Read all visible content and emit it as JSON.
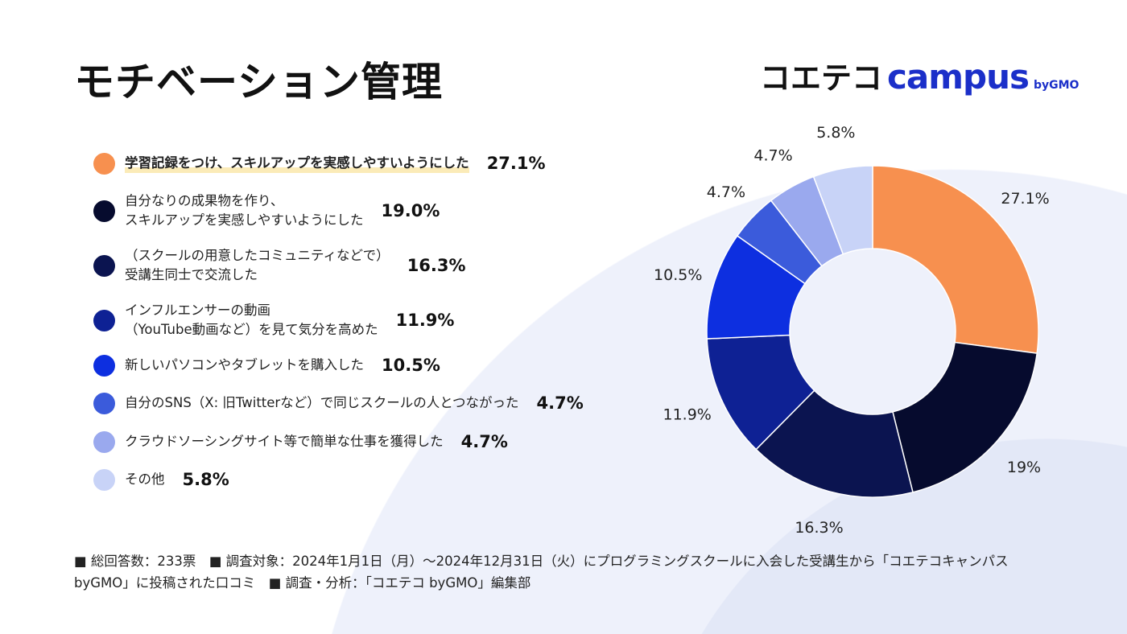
{
  "title": "モチベーション管理",
  "logo": {
    "jp": "コエテコ",
    "en": "campus",
    "by": "byGMO"
  },
  "chart_data": {
    "type": "pie",
    "donut": true,
    "title": "モチベーション管理",
    "categories": [
      "学習記録をつけ、スキルアップを実感しやすいようにした",
      "自分なりの成果物を作り、\nスキルアップを実感しやすいようにした",
      "（スクールの用意したコミュニティなどで）\n受講生同士で交流した",
      "インフルエンサーの動画\n（YouTube動画など）を見て気分を高めた",
      "新しいパソコンやタブレットを購入した",
      "自分のSNS（X: 旧Twitterなど）で同じスクールの人とつながった",
      "クラウドソーシングサイト等で簡単な仕事を獲得した",
      "その他"
    ],
    "values": [
      27.1,
      19.0,
      16.3,
      11.9,
      10.5,
      4.7,
      4.7,
      5.8
    ],
    "legend_values": [
      "27.1%",
      "19.0%",
      "16.3%",
      "11.9%",
      "10.5%",
      "4.7%",
      "4.7%",
      "5.8%"
    ],
    "slice_labels": [
      "27.1%",
      "19%",
      "16.3%",
      "11.9%",
      "10.5%",
      "4.7%",
      "4.7%",
      "5.8%"
    ],
    "colors": [
      "#F7904F",
      "#060B2E",
      "#0B1450",
      "#0E2194",
      "#0D2FE0",
      "#3B5BDB",
      "#9AA9EE",
      "#C8D3F7"
    ],
    "legend_placement": "left"
  },
  "footer": "■ 総回答数：233票　■ 調査対象：2024年1月1日（月）～2024年12月31日（火）にプログラミングスクールに入会した受講生から「コエテコキャンパス byGMO」に投稿された口コミ　■ 調査・分析：「コエテコ byGMO」編集部"
}
